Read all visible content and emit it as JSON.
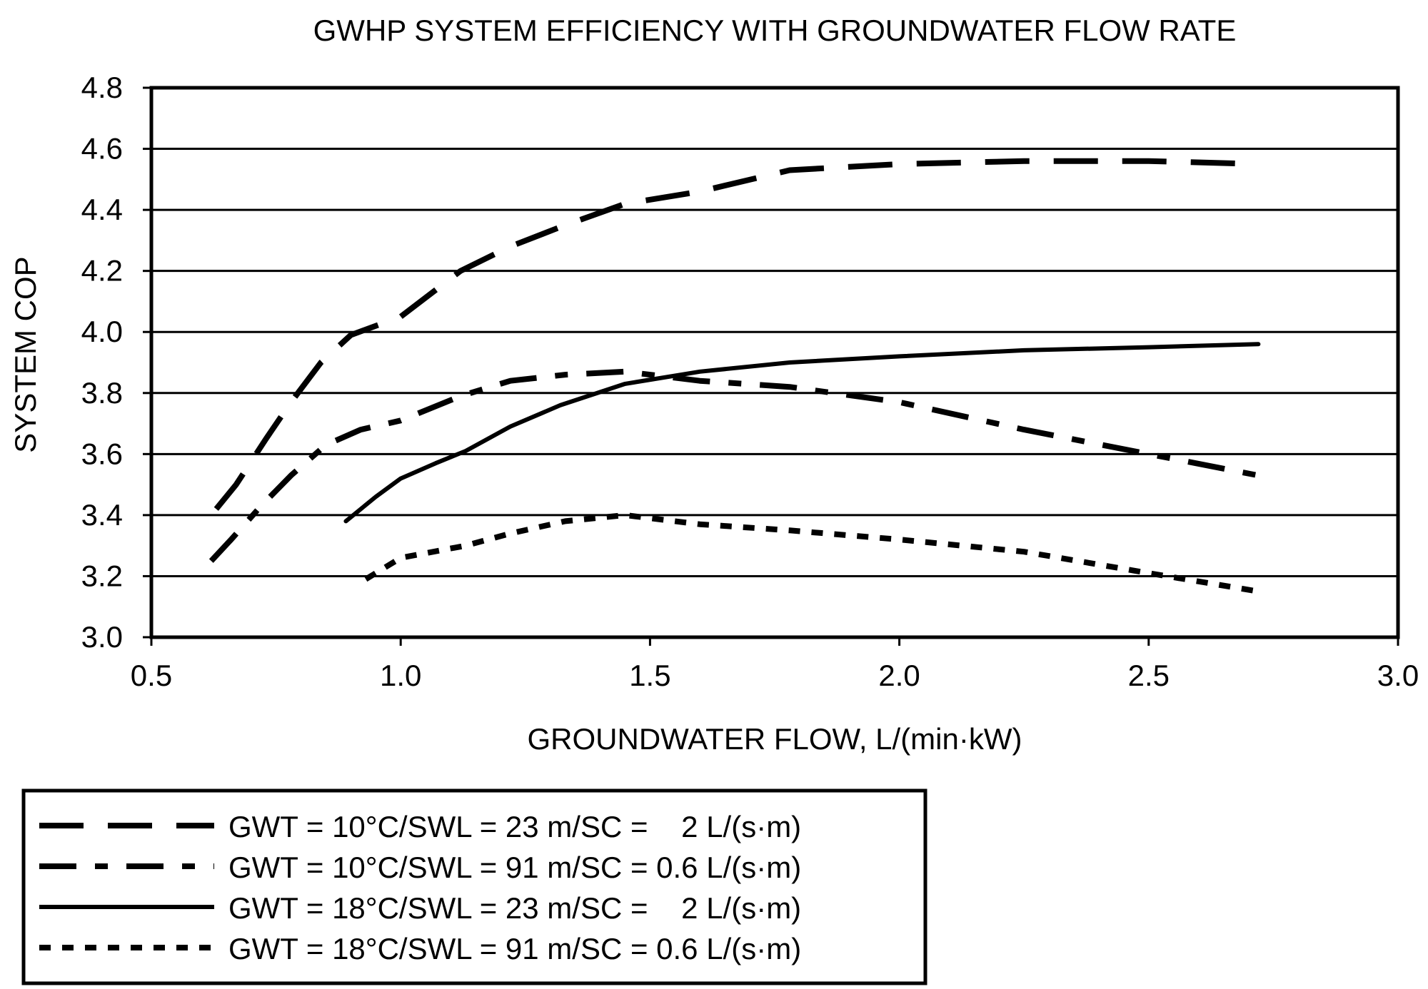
{
  "chart_data": {
    "type": "line",
    "title": "GWHP SYSTEM EFFICIENCY WITH GROUNDWATER FLOW RATE",
    "xlabel": "GROUNDWATER FLOW, L/(min·kW)",
    "ylabel": "SYSTEM COP",
    "xlim": [
      0.5,
      3.0
    ],
    "ylim": [
      3.0,
      4.8
    ],
    "x_ticks": [
      "0.5",
      "1.0",
      "1.5",
      "2.0",
      "2.5",
      "3.0"
    ],
    "y_ticks": [
      "3.0",
      "3.2",
      "3.4",
      "3.6",
      "3.8",
      "4.0",
      "4.2",
      "4.4",
      "4.6",
      "4.8"
    ],
    "grid": "horizontal",
    "legend_position": "bottom-left",
    "series": [
      {
        "name": "GWT = 10°C/SWL = 23 m/SC =    2 L/(s·m)",
        "style": "long-dash",
        "x": [
          0.63,
          0.67,
          0.73,
          0.78,
          0.84,
          0.9,
          1.0,
          1.12,
          1.22,
          1.33,
          1.45,
          1.6,
          1.78,
          2.0,
          2.25,
          2.5,
          2.72
        ],
        "y": [
          3.42,
          3.5,
          3.65,
          3.77,
          3.9,
          3.99,
          4.05,
          4.2,
          4.28,
          4.35,
          4.42,
          4.46,
          4.53,
          4.55,
          4.56,
          4.56,
          4.55
        ]
      },
      {
        "name": "GWT = 10°C/SWL = 91 m/SC = 0.6 L/(s·m)",
        "style": "dash-dot",
        "x": [
          0.62,
          0.66,
          0.72,
          0.78,
          0.85,
          0.92,
          1.0,
          1.12,
          1.22,
          1.33,
          1.45,
          1.6,
          1.78,
          2.0,
          2.25,
          2.5,
          2.72
        ],
        "y": [
          3.25,
          3.32,
          3.43,
          3.53,
          3.63,
          3.68,
          3.71,
          3.79,
          3.84,
          3.86,
          3.87,
          3.84,
          3.82,
          3.77,
          3.68,
          3.6,
          3.53
        ]
      },
      {
        "name": "GWT = 18°C/SWL = 23 m/SC =    2 L/(s·m)",
        "style": "solid",
        "x": [
          0.89,
          0.95,
          1.0,
          1.07,
          1.13,
          1.22,
          1.32,
          1.45,
          1.6,
          1.78,
          2.0,
          2.25,
          2.5,
          2.72
        ],
        "y": [
          3.38,
          3.46,
          3.52,
          3.57,
          3.61,
          3.69,
          3.76,
          3.83,
          3.87,
          3.9,
          3.92,
          3.94,
          3.95,
          3.96
        ]
      },
      {
        "name": "GWT = 18°C/SWL = 91 m/SC = 0.6 L/(s·m)",
        "style": "short-dash",
        "x": [
          0.93,
          1.0,
          1.13,
          1.22,
          1.33,
          1.45,
          1.6,
          1.78,
          2.0,
          2.25,
          2.5,
          2.72
        ],
        "y": [
          3.19,
          3.26,
          3.3,
          3.34,
          3.38,
          3.4,
          3.37,
          3.35,
          3.32,
          3.28,
          3.21,
          3.15
        ]
      }
    ]
  }
}
